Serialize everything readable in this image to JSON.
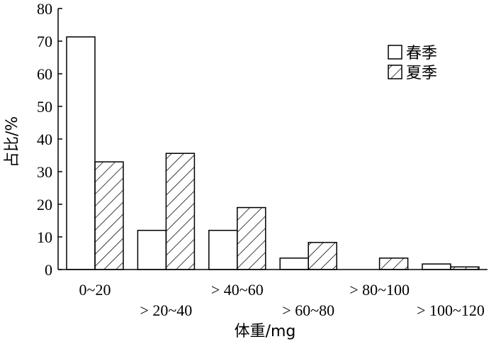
{
  "chart_data": {
    "type": "bar",
    "xlabel": "体重/mg",
    "ylabel": "占比/%",
    "ylim": [
      0,
      80
    ],
    "yticks": [
      0,
      10,
      20,
      30,
      40,
      50,
      60,
      70,
      80
    ],
    "categories": [
      "0~20",
      "> 20~40",
      "> 40~60",
      "> 60~80",
      "> 80~100",
      "> 100~120"
    ],
    "series": [
      {
        "name": "春季",
        "fill": "#ffffff",
        "pattern": "none",
        "values": [
          71.3,
          12,
          12,
          3.5,
          0,
          1.7
        ]
      },
      {
        "name": "夏季",
        "fill": "#ffffff",
        "pattern": "hatch",
        "values": [
          33,
          35.6,
          19,
          8.3,
          3.5,
          0.8
        ]
      }
    ],
    "legend_position": "top-right",
    "grid": false
  }
}
